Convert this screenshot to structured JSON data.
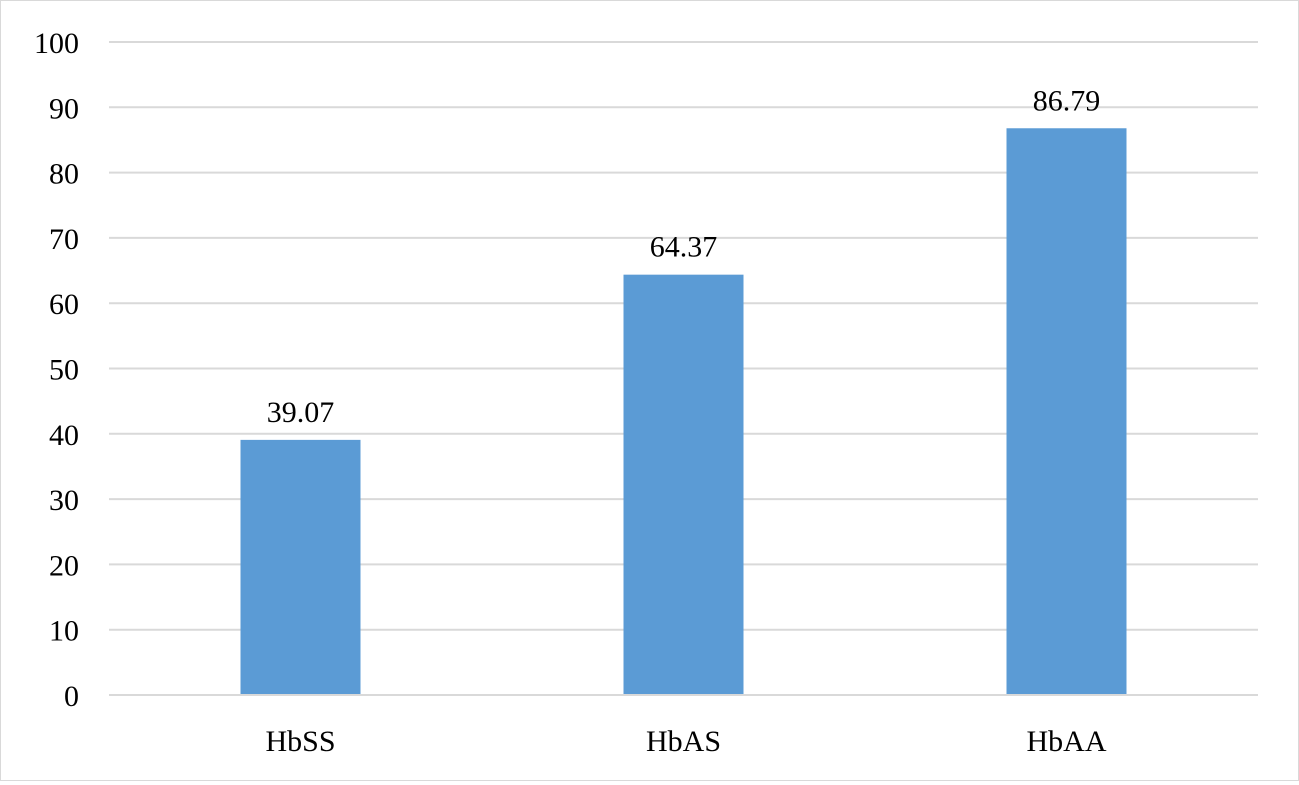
{
  "chart_data": {
    "type": "bar",
    "categories": [
      "HbSS",
      "HbAS",
      "HbAA"
    ],
    "values": [
      39.07,
      64.37,
      86.79
    ],
    "data_labels": [
      "39.07",
      "64.37",
      "86.79"
    ],
    "title": "",
    "xlabel": "",
    "ylabel": "",
    "ylim": [
      0,
      100
    ],
    "y_ticks": [
      0,
      10,
      20,
      30,
      40,
      50,
      60,
      70,
      80,
      90,
      100
    ],
    "y_tick_labels": [
      "0",
      "10",
      "20",
      "30",
      "40",
      "50",
      "60",
      "70",
      "80",
      "90",
      "100"
    ],
    "grid": true,
    "legend": "none",
    "colors": {
      "bar": "#5b9bd5",
      "grid": "#d9d9d9",
      "frame": "#d9d9d9"
    }
  }
}
